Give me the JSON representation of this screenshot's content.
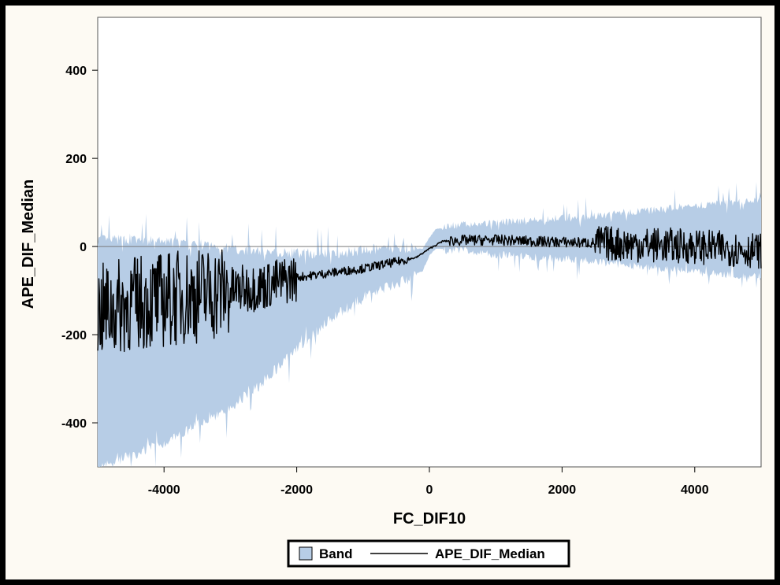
{
  "chart_data": {
    "type": "line",
    "title": "",
    "xlabel": "FC_DIF10",
    "ylabel": "APE_DIF_Median",
    "xlim": [
      -5000,
      5000
    ],
    "ylim": [
      -500,
      520
    ],
    "xticks": [
      -4000,
      -2000,
      0,
      2000,
      4000
    ],
    "yticks": [
      -400,
      -200,
      0,
      200,
      400
    ],
    "x_tick_labels": [
      "-4000",
      "-2000",
      "0",
      "2000",
      "4000"
    ],
    "y_tick_labels": [
      "-400",
      "-200",
      "0",
      "200",
      "400"
    ],
    "reference_line_y": 0,
    "grid": false,
    "legend_position": "bottom-center",
    "series": [
      {
        "name": "Band",
        "kind": "band",
        "color": "#b7cde6",
        "x": [
          -5000,
          -4500,
          -4000,
          -3500,
          -3000,
          -2500,
          -2000,
          -1500,
          -1000,
          -500,
          -100,
          0,
          100,
          500,
          1000,
          1500,
          2000,
          2500,
          3000,
          3500,
          4000,
          4500,
          5000
        ],
        "lower": [
          -500,
          -470,
          -440,
          -400,
          -360,
          -300,
          -230,
          -160,
          -110,
          -80,
          -55,
          -20,
          -5,
          -5,
          -15,
          -20,
          -25,
          -30,
          -40,
          -45,
          -55,
          -60,
          -65
        ],
        "upper": [
          10,
          10,
          5,
          0,
          -10,
          -15,
          -20,
          -20,
          -15,
          -10,
          -5,
          20,
          40,
          45,
          50,
          55,
          60,
          65,
          75,
          80,
          90,
          95,
          100
        ]
      },
      {
        "name": "APE_DIF_Median",
        "kind": "line",
        "color": "#000000",
        "x": [
          -5000,
          -4500,
          -4000,
          -3500,
          -3000,
          -2500,
          -2000,
          -1500,
          -1000,
          -500,
          -200,
          0,
          200,
          500,
          1000,
          1500,
          2000,
          2500,
          3000,
          3500,
          4000,
          4500,
          5000
        ],
        "y": [
          -150,
          -130,
          -120,
          -110,
          -100,
          -90,
          -70,
          -60,
          -50,
          -35,
          -25,
          -5,
          12,
          14,
          15,
          12,
          10,
          8,
          5,
          3,
          0,
          -5,
          -10
        ]
      }
    ]
  },
  "legend": {
    "band_label": "Band",
    "line_label": "APE_DIF_Median"
  }
}
